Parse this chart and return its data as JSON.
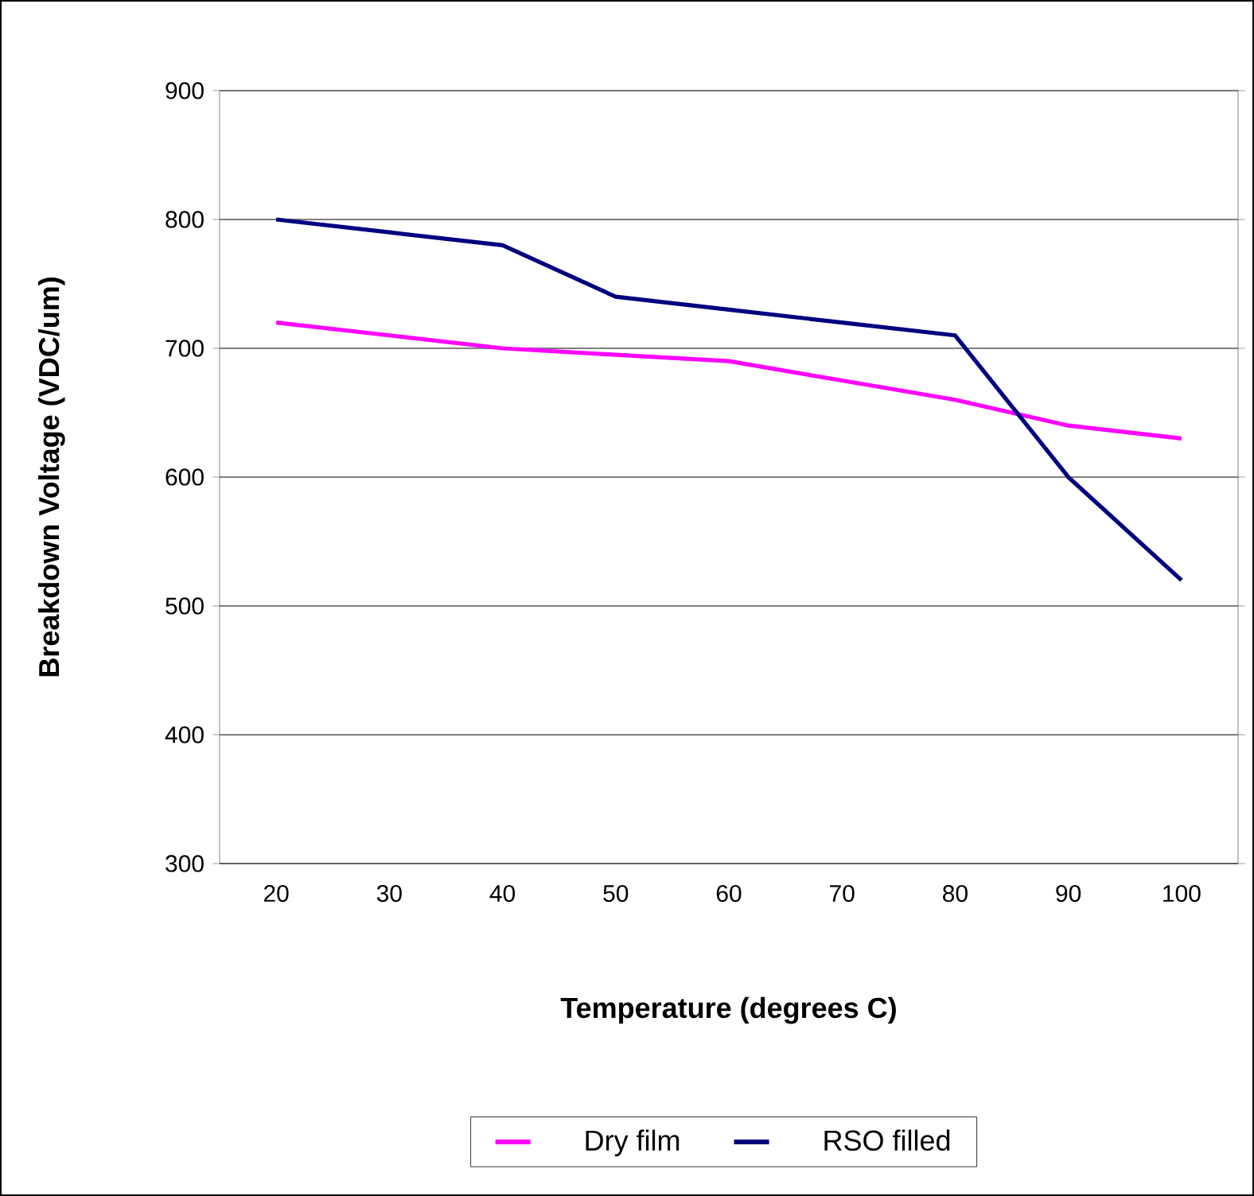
{
  "chart_data": {
    "type": "line",
    "xlabel": "Temperature (degrees C)",
    "ylabel": "Breakdown Voltage (VDC/um)",
    "categories": [
      "20",
      "30",
      "40",
      "50",
      "60",
      "70",
      "80",
      "90",
      "100"
    ],
    "series": [
      {
        "name": "Dry film",
        "color": "#ff00ff",
        "values": [
          720,
          710,
          700,
          695,
          690,
          675,
          660,
          640,
          630
        ]
      },
      {
        "name": "RSO filled",
        "color": "#000080",
        "values": [
          800,
          790,
          780,
          740,
          730,
          720,
          710,
          600,
          520
        ]
      }
    ],
    "ylim": [
      300,
      900
    ],
    "yticks": [
      300,
      400,
      500,
      600,
      700,
      800,
      900
    ],
    "grid": "y",
    "legend": "bottom",
    "marker": "none",
    "line_style": "solid"
  }
}
